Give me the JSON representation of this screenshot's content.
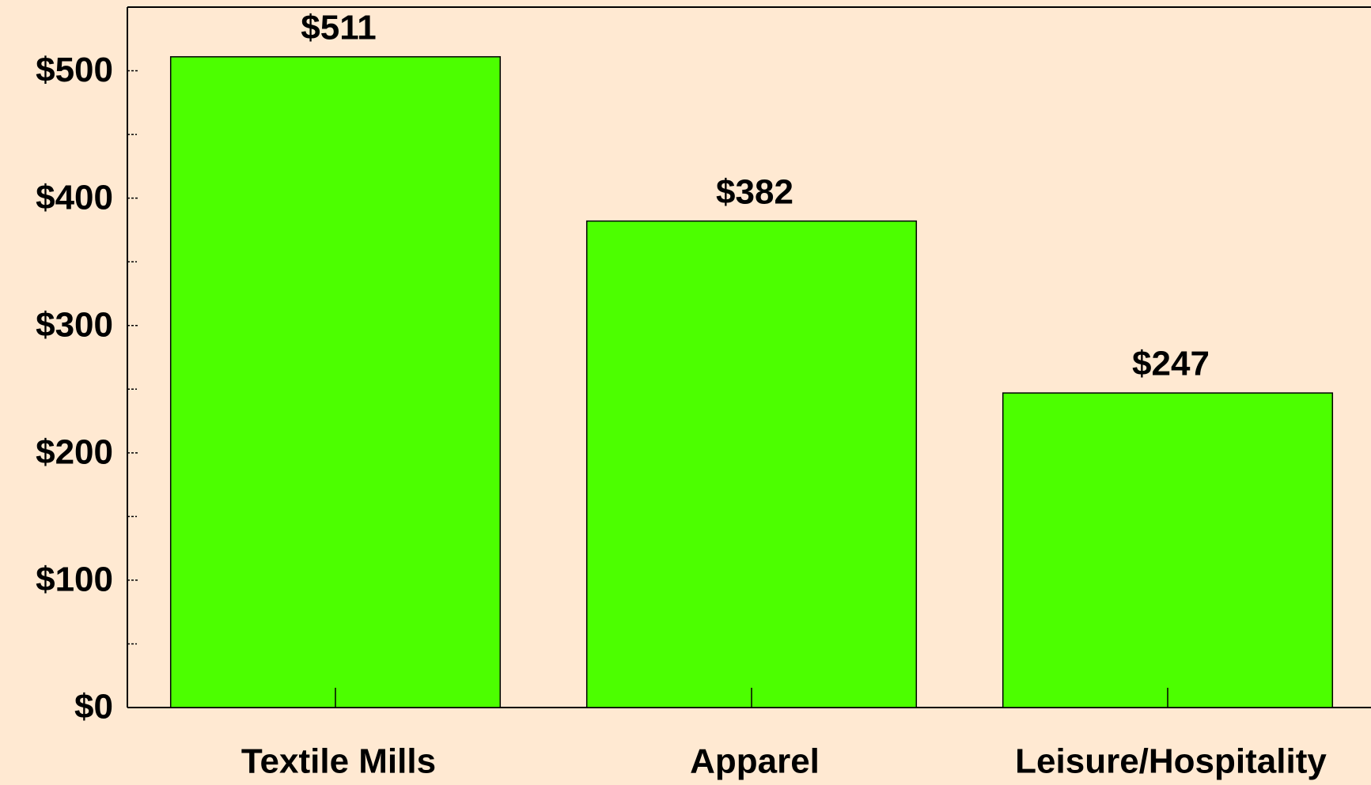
{
  "chart_data": {
    "type": "bar",
    "categories": [
      "Textile Mills",
      "Apparel",
      "Leisure/Hospitality"
    ],
    "values": [
      511,
      382,
      247
    ],
    "value_labels": [
      "$511",
      "$382",
      "$247"
    ],
    "color": "#4cff00",
    "ylim": [
      0,
      550
    ],
    "yticks": [
      {
        "value": 0,
        "label": "$0"
      },
      {
        "value": 100,
        "label": "$100"
      },
      {
        "value": 200,
        "label": "$200"
      },
      {
        "value": 300,
        "label": "$300"
      },
      {
        "value": 400,
        "label": "$400"
      },
      {
        "value": 500,
        "label": "$500"
      }
    ]
  }
}
